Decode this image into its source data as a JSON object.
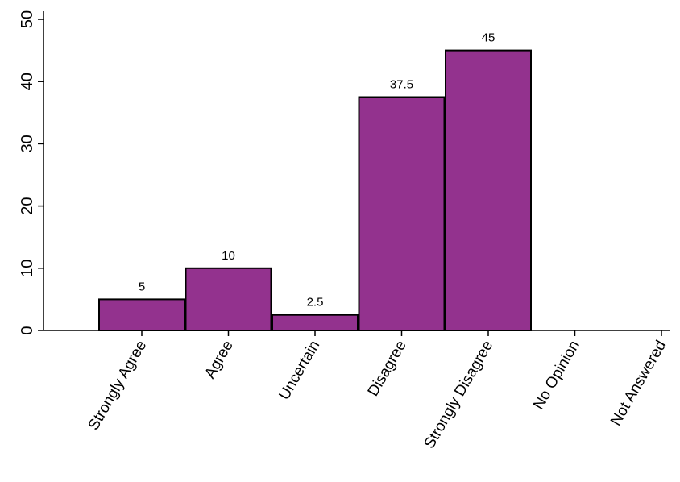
{
  "chart_data": {
    "type": "bar",
    "categories": [
      "Strongly Agree",
      "Agree",
      "Uncertain",
      "Disagree",
      "Strongly Disagree",
      "No Opinion",
      "Not Answered"
    ],
    "values": [
      5,
      10,
      2.5,
      37.5,
      45,
      0,
      0
    ],
    "data_labels": [
      "5",
      "10",
      "2.5",
      "37.5",
      "45",
      "",
      ""
    ],
    "ylim": [
      0,
      50
    ],
    "yticks": [
      0,
      10,
      20,
      30,
      40,
      50
    ],
    "title": "",
    "xlabel": "",
    "ylabel": "",
    "grid": false,
    "bar_color": "#93328E",
    "bar_edge_color": "#000000"
  }
}
